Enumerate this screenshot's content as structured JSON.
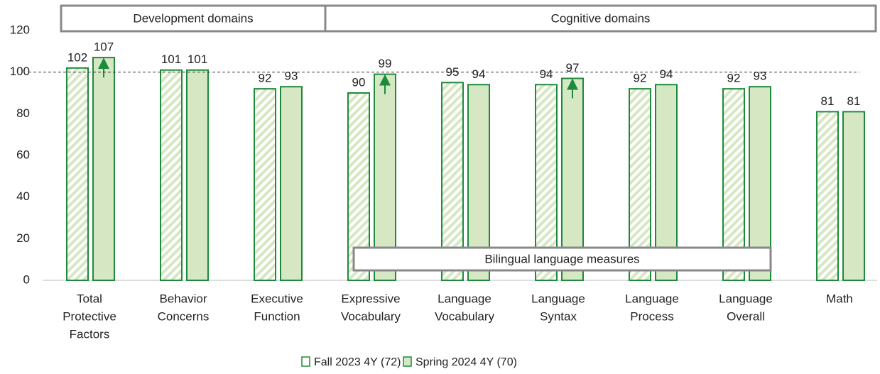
{
  "chart_data": {
    "type": "bar",
    "categories": [
      [
        "Total",
        "Protective",
        "Factors"
      ],
      [
        "Behavior",
        "Concerns"
      ],
      [
        "Executive",
        "Function"
      ],
      [
        "Expressive",
        "Vocabulary"
      ],
      [
        "Language",
        "Vocabulary"
      ],
      [
        "Language",
        "Syntax"
      ],
      [
        "Language",
        "Process"
      ],
      [
        "Language",
        "Overall"
      ],
      [
        "Math"
      ]
    ],
    "series": [
      {
        "name": "Fall 2023 4Y (72)",
        "color": "#1e8a3c",
        "fill": "#d6e7c3",
        "hatched": true,
        "values": [
          102,
          101,
          92,
          90,
          95,
          94,
          92,
          92,
          81
        ]
      },
      {
        "name": "Spring 2024 4Y (70)",
        "color": "#1e8a3c",
        "fill": "#d6e7c3",
        "hatched": false,
        "values": [
          107,
          101,
          93,
          99,
          94,
          97,
          94,
          93,
          81
        ],
        "up_arrow": [
          true,
          false,
          false,
          true,
          false,
          true,
          false,
          false,
          false
        ]
      }
    ],
    "ylim": [
      0,
      120
    ],
    "yticks": [
      0,
      20,
      40,
      60,
      80,
      100,
      120
    ],
    "reference_line": 100,
    "groups": [
      {
        "label": "Development domains",
        "count": 3
      },
      {
        "label": "Cognitive domains",
        "count": 6
      }
    ],
    "inner_group": {
      "label": "Bilingual language measures",
      "start": 3,
      "count": 5
    },
    "legend": "bottom"
  }
}
